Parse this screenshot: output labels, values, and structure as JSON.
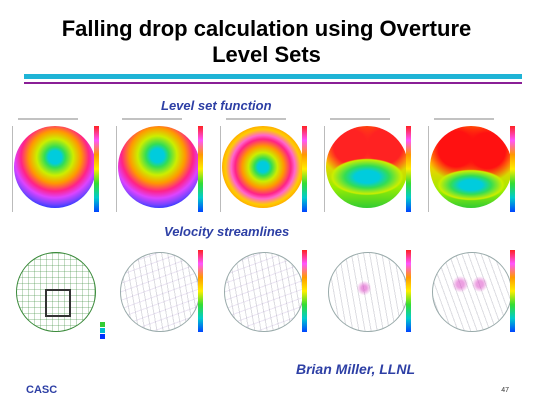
{
  "slide": {
    "title_line1": "Falling drop calculation using Overture",
    "title_line2": "Level Sets",
    "level_set_label": "Level set function",
    "streamlines_label": "Velocity streamlines",
    "author": "Brian Miller, LLNL",
    "footer": "CASC",
    "page_number": "47"
  },
  "colors": {
    "rule_primary": "#1fb4d6",
    "rule_secondary": "#8a1f96",
    "caption_text": "#2d3fa5"
  },
  "panels": {
    "level_set": [
      {
        "name": "level-set-frame-1"
      },
      {
        "name": "level-set-frame-2"
      },
      {
        "name": "level-set-frame-3"
      },
      {
        "name": "level-set-frame-4"
      },
      {
        "name": "level-set-frame-5"
      }
    ],
    "streamlines": [
      {
        "name": "streamline-frame-1"
      },
      {
        "name": "streamline-frame-2"
      },
      {
        "name": "streamline-frame-3"
      },
      {
        "name": "streamline-frame-4"
      },
      {
        "name": "streamline-frame-5"
      }
    ]
  }
}
